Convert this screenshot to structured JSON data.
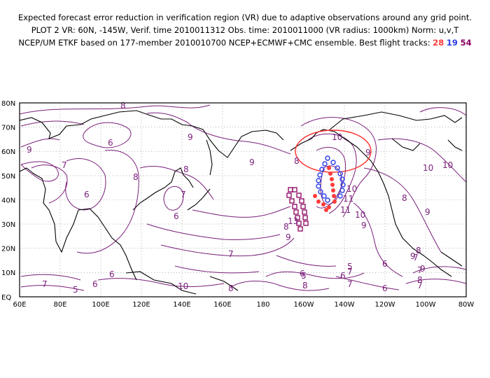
{
  "header": {
    "line1": "Expected forecast error reduction in verification region (VR) due to adaptive observations around any grid point.",
    "line2": "PLOT 2 VR: 60N, -145W, Verif. time 2010011312 Obs. time: 2010011000 (VR radius: 1000km) Norm: u,v,T",
    "line3_prefix": "NCEP/UM ETKF based on 177-member 2010010700 NCEP+ECMWF+CMC ensemble. Best flight tracks: ",
    "track_1": "28",
    "track_2": "19",
    "track_3": "54"
  },
  "map": {
    "lat_labels": [
      "80N",
      "70N",
      "60N",
      "50N",
      "40N",
      "30N",
      "20N",
      "10N",
      "EQ"
    ],
    "lon_labels": [
      "60E",
      "80E",
      "100E",
      "120E",
      "140E",
      "160E",
      "180",
      "160W",
      "140W",
      "120W",
      "100W",
      "80W"
    ],
    "contour_labels": [
      "8",
      "9",
      "6",
      "7",
      "6",
      "8",
      "9",
      "10",
      "9",
      "8",
      "7",
      "6",
      "7",
      "9",
      "8",
      "10",
      "9",
      "10",
      "11",
      "8",
      "9",
      "10",
      "11",
      "13",
      "9",
      "8",
      "6",
      "7",
      "8",
      "9",
      "7",
      "6",
      "5",
      "7",
      "6",
      "10",
      "8",
      "7",
      "6",
      "5",
      "6",
      "6",
      "7",
      "8",
      "10",
      "5",
      "7",
      "9",
      "8"
    ],
    "verification_region": {
      "lat": 60,
      "lon": -145,
      "radius_km": 1000,
      "color": "#ff3030"
    },
    "colors": {
      "contour": "#7a1f7a",
      "coast": "#000000",
      "grid": "#888888",
      "track_1": "#ff3b3b",
      "track_2": "#2a3de8",
      "track_3": "#8a0060"
    }
  }
}
